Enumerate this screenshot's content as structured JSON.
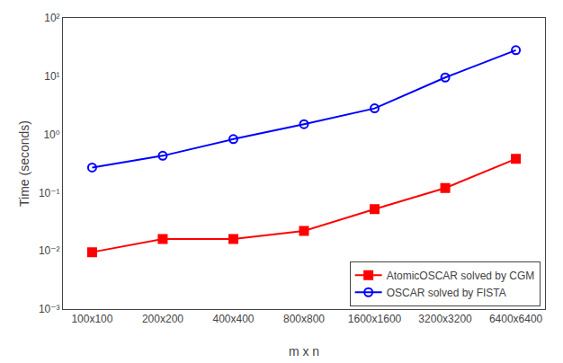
{
  "chart_data": {
    "type": "line",
    "xlabel": "m x n",
    "ylabel": "Time (seconds)",
    "categories": [
      "100x100",
      "200x200",
      "400x400",
      "800x800",
      "1600x1600",
      "3200x3200",
      "6400x6400"
    ],
    "series": [
      {
        "name": "AtomicOSCAR solved by CGM",
        "color": "#FF0000",
        "marker": "square",
        "values": [
          0.0095,
          0.016,
          0.016,
          0.022,
          0.052,
          0.12,
          0.38
        ]
      },
      {
        "name": "OSCAR solved by FISTA",
        "color": "#0000FF",
        "marker": "circle-open",
        "values": [
          0.27,
          0.43,
          0.83,
          1.5,
          2.8,
          9.5,
          28
        ]
      }
    ],
    "log": "y",
    "ylim": [
      0.001,
      100
    ],
    "yticks": [
      {
        "value": 0.001,
        "label": "10⁻³"
      },
      {
        "value": 0.01,
        "label": "10⁻²"
      },
      {
        "value": 0.1,
        "label": "10⁻¹"
      },
      {
        "value": 1,
        "label": "10⁰"
      },
      {
        "value": 10,
        "label": "10¹"
      },
      {
        "value": 100,
        "label": "10²"
      }
    ],
    "grid": false,
    "legend": "lower right"
  }
}
